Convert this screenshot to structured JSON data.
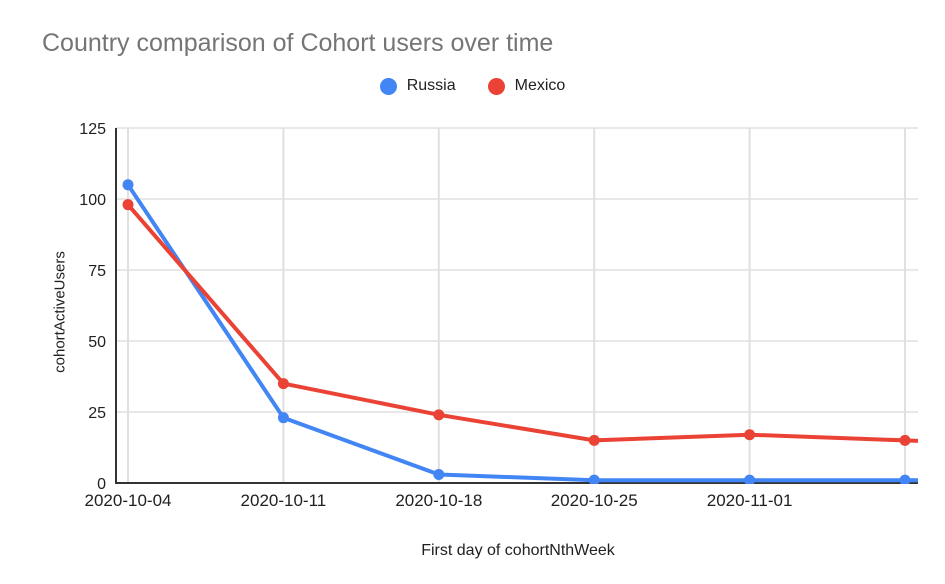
{
  "chart_data": {
    "type": "line",
    "title": "Country comparison of Cohort users over time",
    "xlabel": "First day of cohortNthWeek",
    "ylabel": "cohortActiveUsers",
    "categories": [
      "2020-10-04",
      "2020-10-11",
      "2020-10-18",
      "2020-10-25",
      "2020-11-01",
      ""
    ],
    "series": [
      {
        "name": "Russia",
        "color": "#4285F4",
        "values": [
          105,
          23,
          3,
          1,
          1,
          1
        ]
      },
      {
        "name": "Mexico",
        "color": "#EA4335",
        "values": [
          98,
          35,
          24,
          15,
          17,
          15
        ]
      }
    ],
    "y_ticks": [
      0,
      25,
      50,
      75,
      100,
      125
    ],
    "ylim": [
      0,
      125
    ],
    "grid": true,
    "legend_position": "top",
    "point_markers": true,
    "lines_clipped_at_right_edge": true
  },
  "colors": {
    "title_text": "#757575",
    "tick_text": "#212121",
    "axis_title_text": "#212121",
    "gridline": "#e0e0e0",
    "axis_line": "#333333",
    "background": "#ffffff"
  }
}
